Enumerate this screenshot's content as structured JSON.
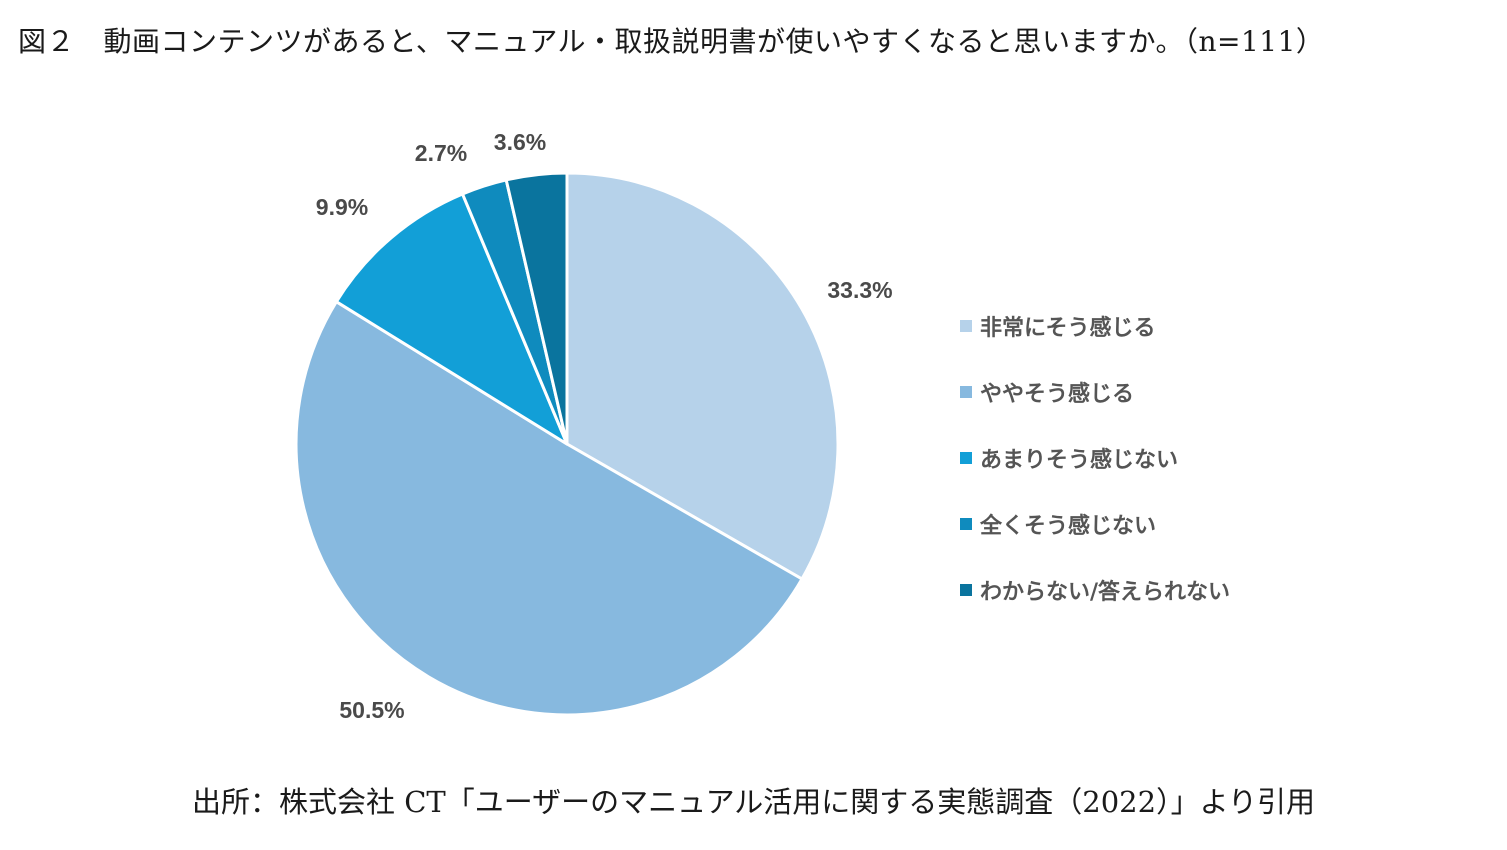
{
  "title": "図２　動画コンテンツがあると、マニュアル・取扱説明書が使いやすくなると思いますか。（n=111）",
  "source": "出所：株式会社 CT「ユーザーのマニュアル活用に関する実態調査（2022）」より引用",
  "chart_data": {
    "type": "pie",
    "title": "動画コンテンツがあると、マニュアル・取扱説明書が使いやすくなると思いますか。（n=111）",
    "n": 111,
    "unit": "%",
    "legend_position": "right",
    "start": "top (12 o'clock), clockwise",
    "slices": [
      {
        "label": "非常にそう感じる",
        "value": 33.3,
        "value_label": "33.3%",
        "color": "#b6d2ea"
      },
      {
        "label": "ややそう感じる",
        "value": 50.5,
        "value_label": "50.5%",
        "color": "#87b9df"
      },
      {
        "label": "あまりそう感じない",
        "value": 9.9,
        "value_label": "9.9%",
        "color": "#129fd7"
      },
      {
        "label": "全くそう感じない",
        "value": 2.7,
        "value_label": "2.7%",
        "color": "#0f8bbe"
      },
      {
        "label": "わからない/答えられない",
        "value": 3.6,
        "value_label": "3.6%",
        "color": "#0a749e"
      }
    ]
  }
}
